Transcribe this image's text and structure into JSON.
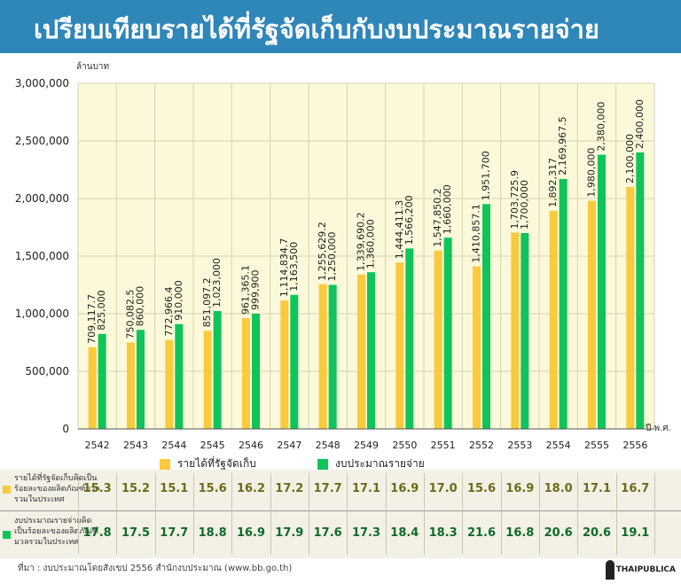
{
  "header": {
    "title": "เปรียบเทียบรายได้ที่รัฐจัดเก็บกับงบประมาณรายจ่าย"
  },
  "chart_data": {
    "type": "bar",
    "unit_label": "ล้านบาท",
    "x_unit_label": "ปี พ.ศ.",
    "categories": [
      "2542",
      "2543",
      "2544",
      "2545",
      "2546",
      "2547",
      "2548",
      "2549",
      "2550",
      "2551",
      "2552",
      "2553",
      "2554",
      "2555",
      "2556"
    ],
    "series": [
      {
        "name": "รายได้ที่รัฐจัดเก็บ",
        "color": "#f9ca3c",
        "values": [
          709117.7,
          750082.5,
          772966.4,
          851097.2,
          961365.1,
          1114834.7,
          1255629.2,
          1339690.2,
          1444411.3,
          1547850.2,
          1410857.1,
          1703725.9,
          1892317,
          1980000,
          2100000
        ],
        "labels": [
          "709,117.7",
          "750,082.5",
          "772,966.4",
          "851,097.2",
          "961,365.1",
          "1,114,834.7",
          "1,255,629.2",
          "1,339,690.2",
          "1,444,411.3",
          "1,547,850.2",
          "1,410,857.1",
          "1,703,725.9",
          "1,892,317",
          "1,980,000",
          "2,100,000"
        ]
      },
      {
        "name": "งบประมาณรายจ่าย",
        "color": "#10c45a",
        "values": [
          825000,
          860000,
          910000,
          1023000,
          999900,
          1163500,
          1250000,
          1360000,
          1566200,
          1660000,
          1951700,
          1700000,
          2169967.5,
          2380000,
          2400000
        ],
        "labels": [
          "825,000",
          "860,000",
          "910,000",
          "1,023,000",
          "999,900",
          "1,163,500",
          "1,250,000",
          "1,360,000",
          "1,566,200",
          "1,660,000",
          "1,951,700",
          "1,700,000",
          "2,169,967.5",
          "2,380,000",
          "2,400,000"
        ]
      }
    ],
    "ylim": [
      0,
      3000000
    ],
    "yticks": [
      0,
      500000,
      1000000,
      1500000,
      2000000,
      2500000,
      3000000
    ],
    "ytick_labels": [
      "0",
      "500,000",
      "1,000,000",
      "1,500,000",
      "2,000,000",
      "2,500,000",
      "3,000,000"
    ],
    "plot_background": "#fbf9da",
    "grid": true
  },
  "table": {
    "rows": [
      {
        "label": "รายได้ที่รัฐจัดเก็บคิดเป็นร้อยละของผลิตภัณฑ์มวลรวมในประเทศ",
        "color": "#f9ca3c",
        "text_color": "#6e6a1a",
        "values": [
          "15.3",
          "15.2",
          "15.1",
          "15.6",
          "16.2",
          "17.2",
          "17.7",
          "17.1",
          "16.9",
          "17.0",
          "15.6",
          "16.9",
          "18.0",
          "17.1",
          "16.7"
        ]
      },
      {
        "label": "งบประมาณรายจ่ายคิดเป็นร้อยละของผลิตภัณฑ์มวลรวมในประเทศ",
        "color": "#10c45a",
        "text_color": "#0f6a2a",
        "values": [
          "17.8",
          "17.5",
          "17.7",
          "18.8",
          "16.9",
          "17.9",
          "17.6",
          "17.3",
          "18.4",
          "18.3",
          "21.6",
          "16.8",
          "20.6",
          "20.6",
          "19.1"
        ]
      }
    ]
  },
  "footer": {
    "source": "ที่มา : งบประมาณโดยสังเขป 2556 สำนักงบประมาณ (www.bb.go.th)",
    "logo_text": "THAIPUBLICA"
  }
}
